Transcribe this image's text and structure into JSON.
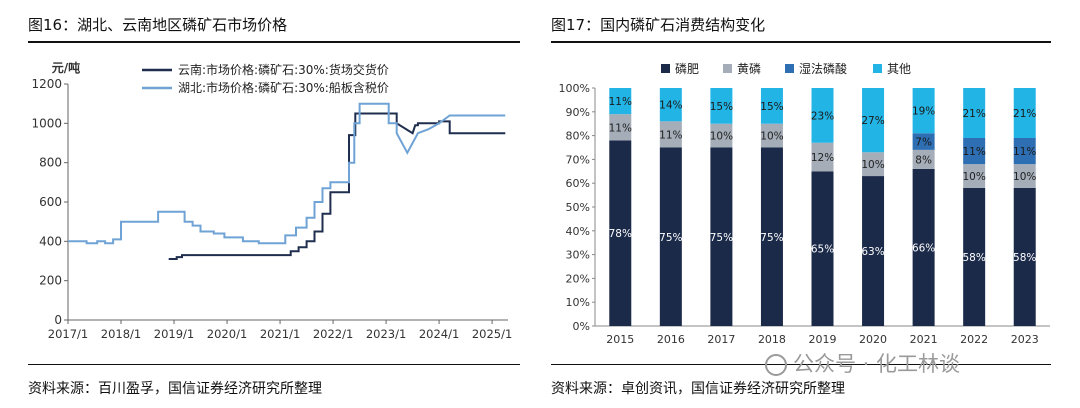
{
  "left": {
    "title": "图16：湖北、云南地区磷矿石市场价格",
    "source": "资料来源：百川盈孚，国信证券经济研究所整理"
  },
  "right": {
    "title": "图17：国内磷矿石消费结构变化",
    "source": "资料来源：卓创资讯，国信证券经济研究所整理",
    "watermark": "公众号 · 化工林谈"
  },
  "chart_data": [
    {
      "type": "line",
      "ylabel": "元/吨",
      "ylim": [
        0,
        1200
      ],
      "yticks": [
        0,
        200,
        400,
        600,
        800,
        1000,
        1200
      ],
      "xticks": [
        "2017/1",
        "2018/1",
        "2019/1",
        "2020/1",
        "2021/1",
        "2022/1",
        "2023/1",
        "2024/1",
        "2025/1"
      ],
      "xlim": [
        2017.0,
        2025.3
      ],
      "grid": false,
      "legend": "top",
      "series": [
        {
          "name": "云南:市场价格:磷矿石:30%:货场交货价",
          "color": "#1f2d4e",
          "x": [
            2018.9,
            2019.05,
            2019.05,
            2019.15,
            2019.15,
            2020.0,
            2021.2,
            2021.2,
            2021.35,
            2021.35,
            2021.5,
            2021.5,
            2021.65,
            2021.65,
            2021.8,
            2021.8,
            2021.95,
            2021.95,
            2022.3,
            2022.3,
            2022.42,
            2022.42,
            2022.6,
            2022.6,
            2023.0,
            2023.0,
            2023.2,
            2023.2,
            2023.5,
            2023.55,
            2023.6,
            2023.6,
            2023.75,
            2023.75,
            2024.0,
            2024.0,
            2024.2,
            2024.2,
            2024.7,
            2024.7,
            2025.25
          ],
          "y": [
            310,
            310,
            320,
            320,
            330,
            330,
            330,
            350,
            350,
            370,
            370,
            400,
            400,
            450,
            450,
            540,
            540,
            650,
            650,
            940,
            940,
            1050,
            1050,
            1050,
            1050,
            1050,
            1050,
            1000,
            950,
            990,
            990,
            1000,
            1000,
            1000,
            1000,
            1010,
            1010,
            950,
            950,
            950,
            950
          ]
        },
        {
          "name": "湖北:市场价格:磷矿石:30%:船板含税价",
          "color": "#6fa3d6",
          "x": [
            2017.0,
            2017.35,
            2017.35,
            2017.55,
            2017.55,
            2017.7,
            2017.7,
            2017.85,
            2017.85,
            2018.0,
            2018.0,
            2018.7,
            2018.7,
            2019.2,
            2019.2,
            2019.35,
            2019.35,
            2019.5,
            2019.5,
            2019.75,
            2019.75,
            2019.95,
            2019.95,
            2020.3,
            2020.3,
            2020.6,
            2020.6,
            2021.1,
            2021.1,
            2021.3,
            2021.3,
            2021.5,
            2021.5,
            2021.65,
            2021.65,
            2021.8,
            2021.8,
            2021.95,
            2021.95,
            2022.3,
            2022.3,
            2022.4,
            2022.4,
            2022.5,
            2022.5,
            2023.05,
            2023.05,
            2023.2,
            2023.2,
            2023.3,
            2023.4,
            2023.5,
            2023.6,
            2023.7,
            2023.8,
            2024.0,
            2024.2,
            2025.25
          ],
          "y": [
            400,
            400,
            390,
            390,
            400,
            400,
            390,
            390,
            410,
            410,
            500,
            500,
            550,
            550,
            500,
            500,
            480,
            480,
            450,
            450,
            440,
            440,
            420,
            420,
            400,
            400,
            390,
            390,
            430,
            430,
            470,
            470,
            520,
            520,
            600,
            600,
            670,
            670,
            700,
            700,
            800,
            800,
            1000,
            1000,
            1100,
            1100,
            1000,
            1000,
            950,
            900,
            850,
            900,
            950,
            960,
            970,
            1000,
            1040,
            1040
          ]
        }
      ]
    },
    {
      "type": "bar",
      "stacked": true,
      "categories": [
        "2015",
        "2016",
        "2017",
        "2018",
        "2019",
        "2020",
        "2021",
        "2022",
        "2023"
      ],
      "ylim": [
        0,
        100
      ],
      "yticks": [
        "0%",
        "10%",
        "20%",
        "30%",
        "40%",
        "50%",
        "60%",
        "70%",
        "80%",
        "90%",
        "100%"
      ],
      "legend": "top",
      "series": [
        {
          "name": "磷肥",
          "color": "#1c2a4a",
          "values": [
            78,
            75,
            75,
            75,
            65,
            63,
            66,
            58,
            58
          ],
          "labels": [
            "78%",
            "75%",
            "75%",
            "75%",
            "65%",
            "63%",
            "66%",
            "58%",
            "58%"
          ]
        },
        {
          "name": "黄磷",
          "color": "#a4adb8",
          "values": [
            11,
            11,
            10,
            10,
            12,
            10,
            8,
            10,
            10
          ],
          "labels": [
            "11%",
            "11%",
            "10%",
            "10%",
            "12%",
            "10%",
            "8%",
            "10%",
            "10%"
          ]
        },
        {
          "name": "湿法磷酸",
          "color": "#2e6fb3",
          "values": [
            0,
            0,
            0,
            0,
            0,
            0,
            7,
            11,
            11
          ],
          "labels": [
            "",
            "",
            "",
            "",
            "",
            "",
            "7%",
            "11%",
            "11%"
          ]
        },
        {
          "name": "其他",
          "color": "#23b4e6",
          "values": [
            11,
            14,
            15,
            15,
            23,
            27,
            19,
            21,
            21
          ],
          "labels": [
            "11%",
            "14%",
            "15%",
            "15%",
            "23%",
            "27%",
            "19%",
            "21%",
            "21%"
          ]
        }
      ]
    }
  ]
}
